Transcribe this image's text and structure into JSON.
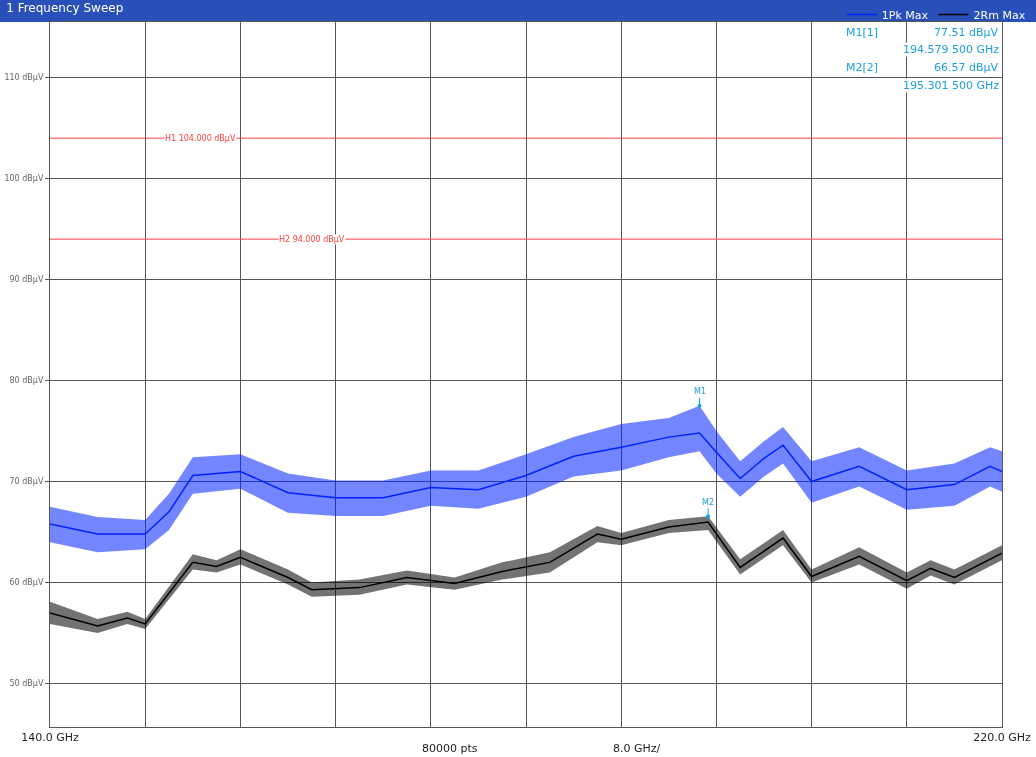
{
  "chart_data": {
    "type": "line",
    "title": "1 Frequency Sweep",
    "xlim": [
      140,
      220
    ],
    "xticks": [
      {
        "value": 140,
        "label": "140.0 GHz"
      },
      {
        "value": 148,
        "label": null
      },
      {
        "value": 156,
        "label": null
      },
      {
        "value": 164,
        "label": null
      },
      {
        "value": 172,
        "label": null
      },
      {
        "value": 180,
        "label": null
      },
      {
        "value": 188,
        "label": null
      },
      {
        "value": 196,
        "label": null
      },
      {
        "value": 204,
        "label": null
      },
      {
        "value": 212,
        "label": null
      },
      {
        "value": 220,
        "label": "220.0 GHz"
      }
    ],
    "ylim": [
      45.7,
      115.5
    ],
    "yticks": [
      {
        "value": 50,
        "label": "50 dBµV"
      },
      {
        "value": 60,
        "label": "60 dBµV"
      },
      {
        "value": 70,
        "label": "70 dBµV"
      },
      {
        "value": 80,
        "label": "80 dBµV"
      },
      {
        "value": 90,
        "label": "90 dBµV"
      },
      {
        "value": 100,
        "label": "100 dBµV"
      },
      {
        "value": 110,
        "label": "110 dBµV"
      }
    ],
    "grid": true,
    "legend": "top right",
    "marker": "none",
    "line_style": "solid",
    "series": [
      {
        "name": "1Pk Max",
        "color": "#0022ff",
        "x": [
          140,
          144,
          148,
          150,
          152,
          156,
          160,
          164,
          168,
          172,
          176,
          180,
          184,
          188,
          192,
          194.5795,
          196,
          198,
          200,
          201.6,
          204,
          208,
          212,
          216,
          219,
          220
        ],
        "values": [
          65.8,
          64.8,
          64.8,
          67.0,
          70.6,
          71.0,
          68.9,
          68.4,
          68.4,
          69.4,
          69.2,
          70.6,
          72.5,
          73.4,
          74.4,
          74.8,
          72.9,
          70.3,
          72.3,
          73.6,
          70.0,
          71.5,
          69.2,
          69.7,
          71.5,
          71.0
        ],
        "lower": [
          64.0,
          63.0,
          63.3,
          65.2,
          68.8,
          69.3,
          66.9,
          66.6,
          66.6,
          67.6,
          67.3,
          68.5,
          70.5,
          71.1,
          72.4,
          73.0,
          70.8,
          68.5,
          70.5,
          71.8,
          67.9,
          69.5,
          67.2,
          67.6,
          69.5,
          69.0
        ],
        "upper": [
          67.5,
          66.5,
          66.2,
          68.8,
          72.4,
          72.7,
          70.8,
          70.1,
          70.1,
          71.1,
          71.1,
          72.7,
          74.4,
          75.7,
          76.3,
          77.51,
          75.0,
          72.0,
          74.0,
          75.4,
          72.0,
          73.4,
          71.1,
          71.8,
          73.4,
          73.0
        ]
      },
      {
        "name": "2Rm Max",
        "color": "#000000",
        "x": [
          140,
          144,
          146.5,
          148,
          152,
          154,
          156,
          160,
          162,
          166,
          170,
          174,
          178,
          182,
          186,
          188,
          192,
          195.3015,
          198,
          201.6,
          204,
          208,
          212,
          214,
          216,
          220
        ],
        "values": [
          57.0,
          55.7,
          56.5,
          55.9,
          62.0,
          61.6,
          62.5,
          60.5,
          59.3,
          59.5,
          60.5,
          59.9,
          61.1,
          62.0,
          64.8,
          64.3,
          65.5,
          66.0,
          61.5,
          64.4,
          60.6,
          62.6,
          60.2,
          61.4,
          60.5,
          62.9
        ],
        "lower": [
          55.9,
          55.0,
          55.9,
          55.4,
          61.3,
          61.0,
          61.8,
          59.8,
          58.6,
          58.8,
          59.8,
          59.3,
          60.3,
          61.0,
          64.0,
          63.7,
          64.9,
          65.2,
          60.8,
          63.7,
          60.0,
          61.8,
          59.4,
          60.7,
          59.8,
          62.2
        ],
        "upper": [
          58.1,
          56.4,
          57.1,
          56.4,
          62.8,
          62.2,
          63.3,
          61.3,
          60.0,
          60.3,
          61.2,
          60.5,
          62.0,
          63.0,
          65.6,
          64.9,
          66.2,
          66.57,
          62.3,
          65.2,
          61.3,
          63.5,
          61.0,
          62.2,
          61.3,
          63.7
        ]
      }
    ],
    "ref_lines": [
      {
        "axis": "y",
        "value": 104,
        "label": "H1 104.000 dBµV",
        "color": "#ff4040"
      },
      {
        "axis": "y",
        "value": 94,
        "label": "H2 94.000 dBµV",
        "color": "#ff4040"
      }
    ],
    "annotations": [
      {
        "text": "M1",
        "x": 194.5795,
        "y": 77.51
      },
      {
        "text": "M2",
        "x": 195.3015,
        "y": 66.57
      },
      "M1[1]",
      "77.51 dBµV",
      "194.579 500 GHz",
      "M2[2]",
      "66.57 dBµV",
      "195.301 500 GHz",
      "80000 pts",
      "8.0 GHz/"
    ]
  }
}
